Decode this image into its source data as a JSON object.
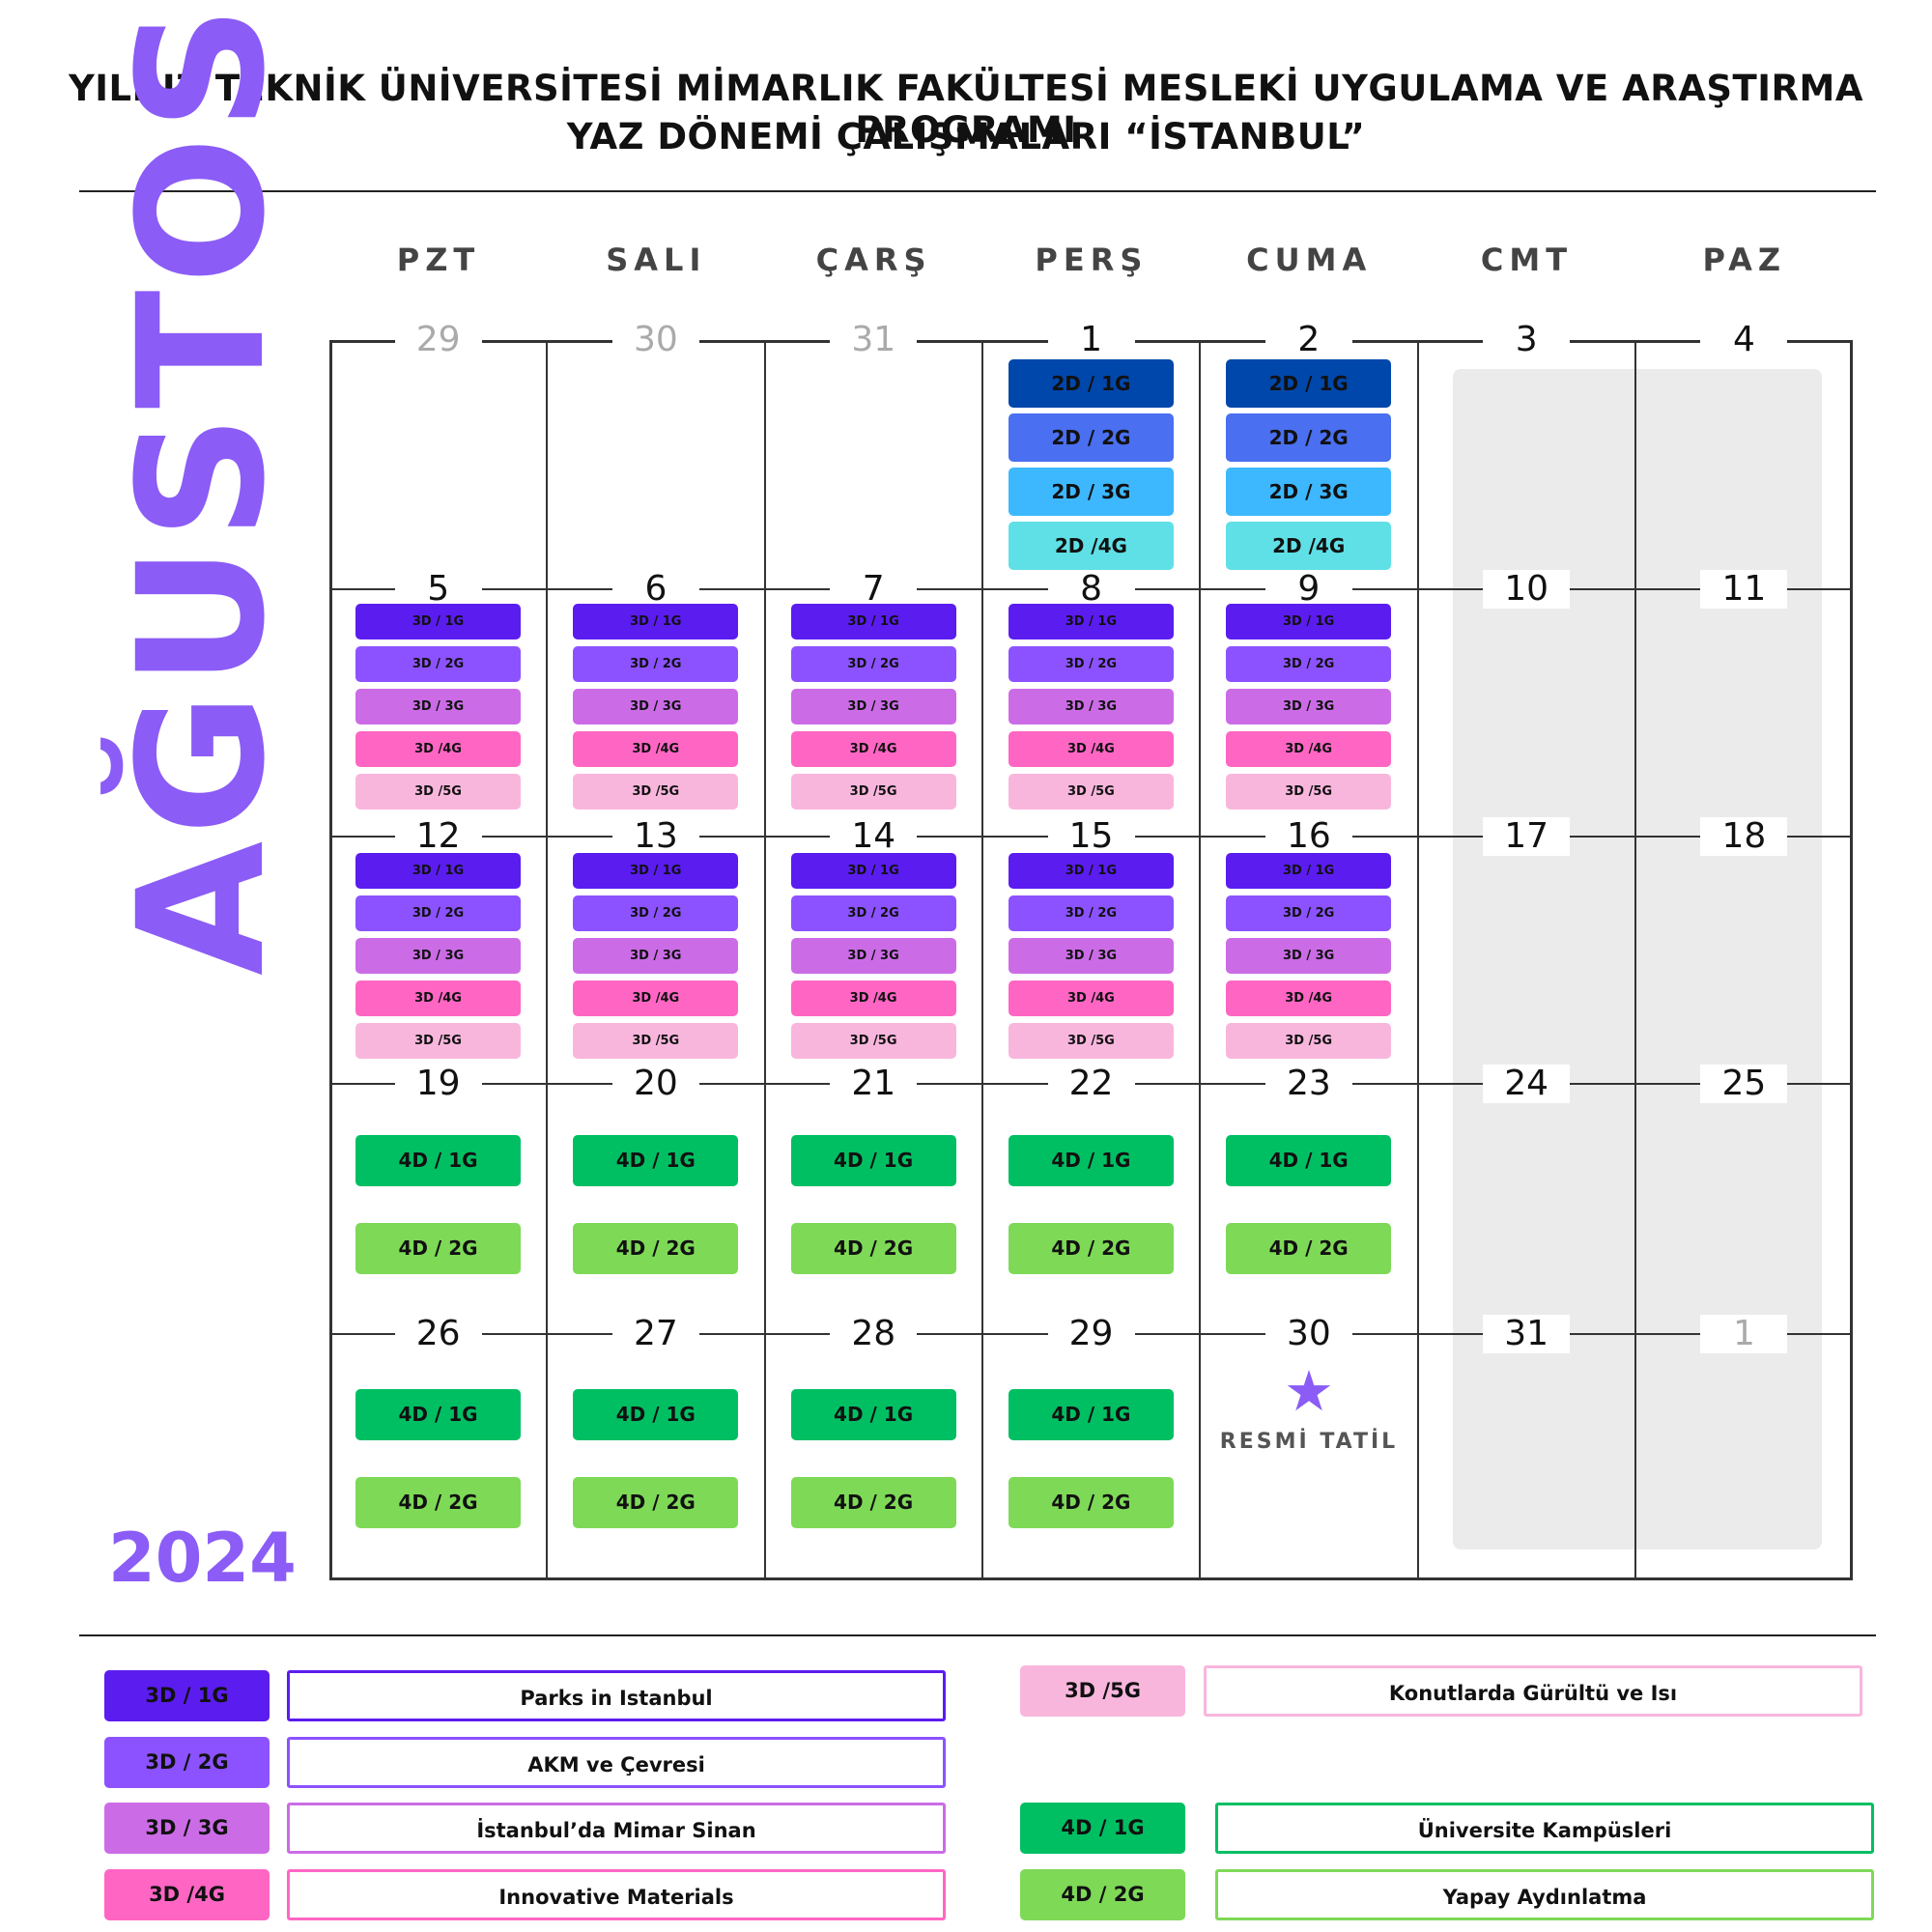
{
  "header": {
    "title_line1": "YILDIZ TEKNİK ÜNİVERSİTESİ MİMARLIK FAKÜLTESİ MESLEKİ UYGULAMA VE ARAŞTIRMA PROGRAMI",
    "title_line2": "YAZ DÖNEMİ ÇALIŞMALARI “İSTANBUL”"
  },
  "calendar": {
    "month": "AĞUSTOS",
    "year": "2024",
    "weekdays": [
      "PZT",
      "SALI",
      "ÇARŞ",
      "PERŞ",
      "CUMA",
      "CMT",
      "PAZ"
    ],
    "weeks": [
      [
        "29",
        "30",
        "31",
        "1",
        "2",
        "3",
        "4"
      ],
      [
        "5",
        "6",
        "7",
        "8",
        "9",
        "10",
        "11"
      ],
      [
        "12",
        "13",
        "14",
        "15",
        "16",
        "17",
        "18"
      ],
      [
        "19",
        "20",
        "21",
        "22",
        "23",
        "24",
        "25"
      ],
      [
        "26",
        "27",
        "28",
        "29",
        "30",
        "31",
        "1"
      ]
    ],
    "muted_days": [
      [
        0,
        0
      ],
      [
        0,
        1
      ],
      [
        0,
        2
      ],
      [
        4,
        6
      ]
    ],
    "holiday_label": "RESMİ TATİL",
    "holiday_icon": "star-icon"
  },
  "groups": {
    "g2d": [
      {
        "label": "2D / 1G",
        "color": "#0047ab"
      },
      {
        "label": "2D / 2G",
        "color": "#4a6ff0"
      },
      {
        "label": "2D / 3G",
        "color": "#3db8ff"
      },
      {
        "label": "2D /4G",
        "color": "#5fe0e6"
      }
    ],
    "g3d": [
      {
        "label": "3D / 1G",
        "color": "#5b1cf0"
      },
      {
        "label": "3D / 2G",
        "color": "#8c52ff"
      },
      {
        "label": "3D / 3G",
        "color": "#cb6ce6"
      },
      {
        "label": "3D /4G",
        "color": "#ff66c4"
      },
      {
        "label": "3D /5G",
        "color": "#f9b6dd"
      }
    ],
    "g4d": [
      {
        "label": "4D / 1G",
        "color": "#00bf63"
      },
      {
        "label": "4D / 2G",
        "color": "#7ed957"
      }
    ]
  },
  "legend": [
    {
      "code": "3D / 1G",
      "label": "Parks in Istanbul",
      "color": "#5b1cf0"
    },
    {
      "code": "3D / 2G",
      "label": "AKM ve Çevresi",
      "color": "#8c52ff"
    },
    {
      "code": "3D / 3G",
      "label": "İstanbul’da Mimar Sinan",
      "color": "#cb6ce6"
    },
    {
      "code": "3D /4G",
      "label": "Innovative Materials",
      "color": "#ff66c4"
    },
    {
      "code": "3D /5G",
      "label": "Konutlarda Gürültü ve Isı",
      "color": "#f9b6dd"
    },
    {
      "code": "4D / 1G",
      "label": "Üniversite Kampüsleri",
      "color": "#00bf63"
    },
    {
      "code": "4D / 2G",
      "label": "Yapay Aydınlatma",
      "color": "#7ed957"
    }
  ]
}
